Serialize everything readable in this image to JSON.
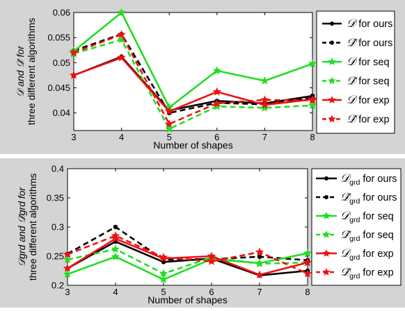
{
  "chart_data": [
    {
      "type": "line",
      "title": "",
      "xlabel": "Number of shapes",
      "ylabel_math": "𝒟 and 𝒟̃ for",
      "ylabel_line2": "three different algorithms",
      "x": [
        3,
        4,
        5,
        6,
        7,
        8
      ],
      "xticks": [
        "3",
        "4",
        "5",
        "6",
        "7",
        "8"
      ],
      "xlim": [
        3,
        8
      ],
      "ylim": [
        0.0365,
        0.06
      ],
      "yticks": [
        "0.04",
        "0.045",
        "0.05",
        "0.055",
        "0.06"
      ],
      "ytick_values": [
        0.04,
        0.045,
        0.05,
        0.055,
        0.06
      ],
      "grid": false,
      "legend_position": "right",
      "series": [
        {
          "legend_sym": "𝒟",
          "legend_text": "for ours",
          "color": "#000000",
          "dashed": false,
          "marker": "dot",
          "values": [
            0.0475,
            0.0512,
            0.0405,
            0.0424,
            0.0419,
            0.0434
          ]
        },
        {
          "legend_sym": "𝒟̃",
          "legend_text": "for ours",
          "color": "#000000",
          "dashed": true,
          "marker": "dot",
          "values": [
            0.0524,
            0.0557,
            0.04,
            0.042,
            0.0417,
            0.043
          ]
        },
        {
          "legend_sym": "𝒟",
          "legend_text": " for seq",
          "color": "#22dd22",
          "dashed": false,
          "marker": "star",
          "values": [
            0.0523,
            0.06,
            0.0411,
            0.0484,
            0.0464,
            0.0498
          ]
        },
        {
          "legend_sym": "𝒟̃",
          "legend_text": " for seq",
          "color": "#22dd22",
          "dashed": true,
          "marker": "star",
          "values": [
            0.0518,
            0.0546,
            0.0368,
            0.0413,
            0.041,
            0.0415
          ]
        },
        {
          "legend_sym": "𝒟",
          "legend_text": " for exp",
          "color": "#ee1111",
          "dashed": false,
          "marker": "star",
          "values": [
            0.0475,
            0.051,
            0.0403,
            0.0442,
            0.0416,
            0.0427
          ]
        },
        {
          "legend_sym": "𝒟̃",
          "legend_text": " for exp",
          "color": "#ee1111",
          "dashed": true,
          "marker": "star",
          "values": [
            0.052,
            0.0556,
            0.0378,
            0.0419,
            0.0426,
            0.0425
          ]
        }
      ]
    },
    {
      "type": "line",
      "title": "",
      "xlabel": "Number of shapes",
      "ylabel_math": "𝒟grd and 𝒟̃grd for",
      "ylabel_line2": "three different algorithms",
      "x": [
        3,
        4,
        5,
        6,
        7,
        8
      ],
      "xticks": [
        "3",
        "4",
        "5",
        "6",
        "7",
        "8"
      ],
      "xlim": [
        3,
        8
      ],
      "ylim": [
        0.2,
        0.4
      ],
      "yticks": [
        "0.2",
        "0.25",
        "0.3",
        "0.35",
        "0.4"
      ],
      "ytick_values": [
        0.2,
        0.25,
        0.3,
        0.35,
        0.4
      ],
      "grid": false,
      "legend_position": "right",
      "series": [
        {
          "legend_sym": "𝒟",
          "legend_sub": "grd",
          "legend_text": " for ours",
          "color": "#000000",
          "dashed": false,
          "marker": "dot",
          "values": [
            0.229,
            0.275,
            0.24,
            0.246,
            0.217,
            0.225
          ]
        },
        {
          "legend_sym": "𝒟̃",
          "legend_sub": "grd",
          "legend_text": " for ours",
          "color": "#000000",
          "dashed": true,
          "marker": "dot",
          "values": [
            0.254,
            0.3,
            0.244,
            0.245,
            0.249,
            0.243
          ]
        },
        {
          "legend_sym": "𝒟",
          "legend_sub": "grd",
          "legend_text": " for seq",
          "color": "#22dd22",
          "dashed": false,
          "marker": "star",
          "values": [
            0.219,
            0.249,
            0.21,
            0.245,
            0.238,
            0.255
          ]
        },
        {
          "legend_sym": "𝒟̃",
          "legend_sub": "grd",
          "legend_text": " for seq",
          "color": "#22dd22",
          "dashed": true,
          "marker": "star",
          "values": [
            0.244,
            0.262,
            0.22,
            0.248,
            0.237,
            0.239
          ]
        },
        {
          "legend_sym": "𝒟",
          "legend_sub": "grd",
          "legend_text": " for exp",
          "color": "#ee1111",
          "dashed": false,
          "marker": "star",
          "values": [
            0.229,
            0.28,
            0.246,
            0.25,
            0.218,
            0.239
          ]
        },
        {
          "legend_sym": "𝒟̃",
          "legend_sub": "grd",
          "legend_text": " for exp",
          "color": "#ee1111",
          "dashed": true,
          "marker": "star",
          "values": [
            0.253,
            0.285,
            0.248,
            0.241,
            0.257,
            0.22
          ]
        }
      ]
    }
  ],
  "colors": {
    "frame_bg": "#d4d4d4",
    "plot_bg": "#ffffff",
    "axis": "#000000"
  }
}
